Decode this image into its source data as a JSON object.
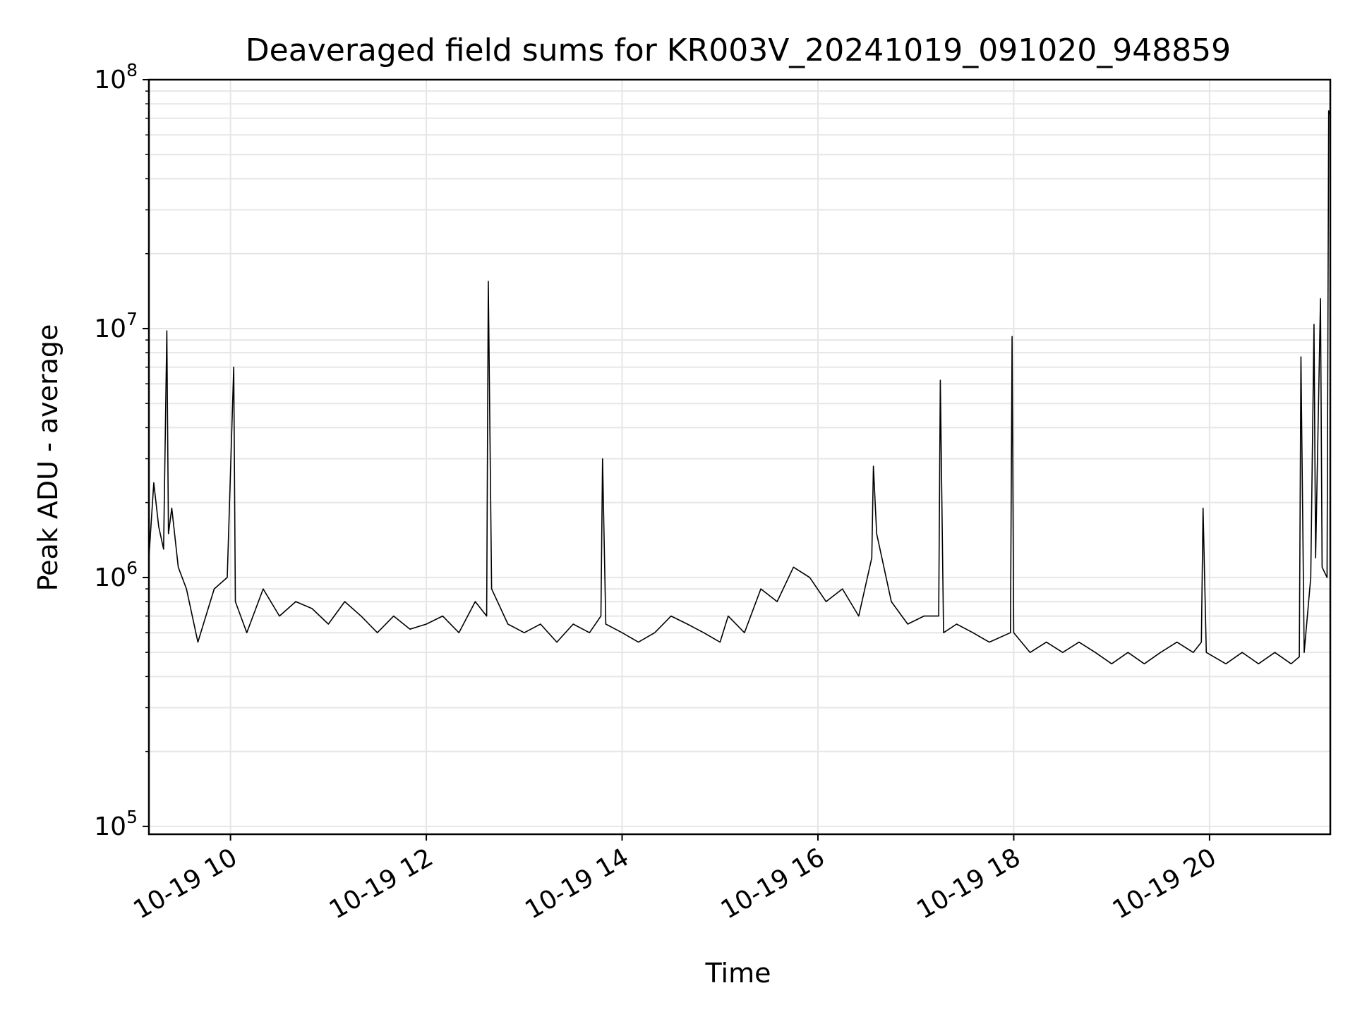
{
  "chart_data": {
    "type": "line",
    "title": "Deaveraged field sums for KR003V_20241019_091020_948859",
    "xlabel": "Time",
    "ylabel": "Peak ADU - average",
    "x_scale": "time",
    "y_scale": "log",
    "xlim": [
      "2024-10-19T09:10",
      "2024-10-19T21:14"
    ],
    "ylim": [
      93000,
      100000000
    ],
    "grid": {
      "major": true,
      "minor_y": true
    },
    "legend": "none",
    "line_color": "#000000",
    "x_ticks": [
      {
        "time": "2024-10-19T10:00",
        "label": "10-19 10"
      },
      {
        "time": "2024-10-19T12:00",
        "label": "10-19 12"
      },
      {
        "time": "2024-10-19T14:00",
        "label": "10-19 14"
      },
      {
        "time": "2024-10-19T16:00",
        "label": "10-19 16"
      },
      {
        "time": "2024-10-19T18:00",
        "label": "10-19 18"
      },
      {
        "time": "2024-10-19T20:00",
        "label": "10-19 20"
      }
    ],
    "y_ticks": [
      {
        "value": 100000,
        "base": "10",
        "exp": "5"
      },
      {
        "value": 1000000,
        "base": "10",
        "exp": "6"
      },
      {
        "value": 10000000,
        "base": "10",
        "exp": "7"
      },
      {
        "value": 100000000,
        "base": "10",
        "exp": "8"
      }
    ],
    "series": [
      {
        "points": [
          [
            "2024-10-19T09:10",
            1200000
          ],
          [
            "2024-10-19T09:13",
            2400000
          ],
          [
            "2024-10-19T09:16",
            1600000
          ],
          [
            "2024-10-19T09:19",
            1300000
          ],
          [
            "2024-10-19T09:21",
            9800000
          ],
          [
            "2024-10-19T09:22",
            1500000
          ],
          [
            "2024-10-19T09:24",
            1900000
          ],
          [
            "2024-10-19T09:28",
            1100000
          ],
          [
            "2024-10-19T09:33",
            900000
          ],
          [
            "2024-10-19T09:40",
            550000
          ],
          [
            "2024-10-19T09:50",
            900000
          ],
          [
            "2024-10-19T09:58",
            1000000
          ],
          [
            "2024-10-19T10:02",
            7000000
          ],
          [
            "2024-10-19T10:03",
            800000
          ],
          [
            "2024-10-19T10:10",
            600000
          ],
          [
            "2024-10-19T10:20",
            900000
          ],
          [
            "2024-10-19T10:30",
            700000
          ],
          [
            "2024-10-19T10:40",
            800000
          ],
          [
            "2024-10-19T10:50",
            750000
          ],
          [
            "2024-10-19T11:00",
            650000
          ],
          [
            "2024-10-19T11:10",
            800000
          ],
          [
            "2024-10-19T11:20",
            700000
          ],
          [
            "2024-10-19T11:30",
            600000
          ],
          [
            "2024-10-19T11:40",
            700000
          ],
          [
            "2024-10-19T11:50",
            620000
          ],
          [
            "2024-10-19T12:00",
            650000
          ],
          [
            "2024-10-19T12:10",
            700000
          ],
          [
            "2024-10-19T12:20",
            600000
          ],
          [
            "2024-10-19T12:30",
            800000
          ],
          [
            "2024-10-19T12:37",
            700000
          ],
          [
            "2024-10-19T12:38",
            15500000
          ],
          [
            "2024-10-19T12:40",
            900000
          ],
          [
            "2024-10-19T12:50",
            650000
          ],
          [
            "2024-10-19T13:00",
            600000
          ],
          [
            "2024-10-19T13:10",
            650000
          ],
          [
            "2024-10-19T13:20",
            550000
          ],
          [
            "2024-10-19T13:30",
            650000
          ],
          [
            "2024-10-19T13:40",
            600000
          ],
          [
            "2024-10-19T13:47",
            700000
          ],
          [
            "2024-10-19T13:48",
            3000000
          ],
          [
            "2024-10-19T13:50",
            650000
          ],
          [
            "2024-10-19T14:00",
            600000
          ],
          [
            "2024-10-19T14:10",
            550000
          ],
          [
            "2024-10-19T14:20",
            600000
          ],
          [
            "2024-10-19T14:30",
            700000
          ],
          [
            "2024-10-19T14:40",
            650000
          ],
          [
            "2024-10-19T14:50",
            600000
          ],
          [
            "2024-10-19T15:00",
            550000
          ],
          [
            "2024-10-19T15:05",
            700000
          ],
          [
            "2024-10-19T15:15",
            600000
          ],
          [
            "2024-10-19T15:25",
            900000
          ],
          [
            "2024-10-19T15:35",
            800000
          ],
          [
            "2024-10-19T15:45",
            1100000
          ],
          [
            "2024-10-19T15:55",
            1000000
          ],
          [
            "2024-10-19T16:05",
            800000
          ],
          [
            "2024-10-19T16:15",
            900000
          ],
          [
            "2024-10-19T16:25",
            700000
          ],
          [
            "2024-10-19T16:33",
            1200000
          ],
          [
            "2024-10-19T16:34",
            2800000
          ],
          [
            "2024-10-19T16:36",
            1500000
          ],
          [
            "2024-10-19T16:45",
            800000
          ],
          [
            "2024-10-19T16:55",
            650000
          ],
          [
            "2024-10-19T17:05",
            700000
          ],
          [
            "2024-10-19T17:14",
            700000
          ],
          [
            "2024-10-19T17:15",
            6200000
          ],
          [
            "2024-10-19T17:17",
            600000
          ],
          [
            "2024-10-19T17:25",
            650000
          ],
          [
            "2024-10-19T17:35",
            600000
          ],
          [
            "2024-10-19T17:45",
            550000
          ],
          [
            "2024-10-19T17:58",
            600000
          ],
          [
            "2024-10-19T17:59",
            9300000
          ],
          [
            "2024-10-19T18:00",
            600000
          ],
          [
            "2024-10-19T18:10",
            500000
          ],
          [
            "2024-10-19T18:20",
            550000
          ],
          [
            "2024-10-19T18:30",
            500000
          ],
          [
            "2024-10-19T18:40",
            550000
          ],
          [
            "2024-10-19T18:50",
            500000
          ],
          [
            "2024-10-19T19:00",
            450000
          ],
          [
            "2024-10-19T19:10",
            500000
          ],
          [
            "2024-10-19T19:20",
            450000
          ],
          [
            "2024-10-19T19:30",
            500000
          ],
          [
            "2024-10-19T19:40",
            550000
          ],
          [
            "2024-10-19T19:50",
            500000
          ],
          [
            "2024-10-19T19:55",
            550000
          ],
          [
            "2024-10-19T19:56",
            1900000
          ],
          [
            "2024-10-19T19:58",
            500000
          ],
          [
            "2024-10-19T20:10",
            450000
          ],
          [
            "2024-10-19T20:20",
            500000
          ],
          [
            "2024-10-19T20:30",
            450000
          ],
          [
            "2024-10-19T20:40",
            500000
          ],
          [
            "2024-10-19T20:50",
            450000
          ],
          [
            "2024-10-19T20:55",
            480000
          ],
          [
            "2024-10-19T20:56",
            7700000
          ],
          [
            "2024-10-19T20:58",
            500000
          ],
          [
            "2024-10-19T21:02",
            1000000
          ],
          [
            "2024-10-19T21:04",
            10400000
          ],
          [
            "2024-10-19T21:05",
            1200000
          ],
          [
            "2024-10-19T21:08",
            13200000
          ],
          [
            "2024-10-19T21:09",
            1100000
          ],
          [
            "2024-10-19T21:12",
            1000000
          ],
          [
            "2024-10-19T21:13",
            75000000
          ],
          [
            "2024-10-19T21:14",
            72000000
          ]
        ]
      }
    ]
  }
}
